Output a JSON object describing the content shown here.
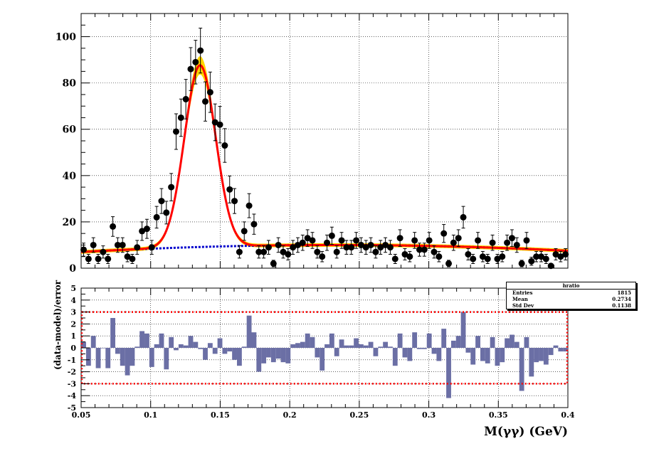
{
  "chart_data": [
    {
      "type": "scatter",
      "panel": "fit",
      "xlim": [
        0.05,
        0.4
      ],
      "ylim": [
        0,
        110
      ],
      "y_ticks": [
        "0",
        "20",
        "40",
        "60",
        "80",
        "100"
      ],
      "grid": true,
      "x": [
        0.0518,
        0.0553,
        0.0588,
        0.0623,
        0.0658,
        0.0693,
        0.0728,
        0.0763,
        0.0798,
        0.0833,
        0.0868,
        0.0903,
        0.0938,
        0.0973,
        0.1008,
        0.1043,
        0.1078,
        0.1113,
        0.1148,
        0.1183,
        0.1218,
        0.1253,
        0.1288,
        0.1323,
        0.1358,
        0.1393,
        0.1428,
        0.1463,
        0.1498,
        0.1533,
        0.1568,
        0.1603,
        0.1638,
        0.1673,
        0.1708,
        0.1743,
        0.1778,
        0.1813,
        0.1848,
        0.1883,
        0.1918,
        0.1953,
        0.1988,
        0.2023,
        0.2058,
        0.2093,
        0.2128,
        0.2163,
        0.2198,
        0.2233,
        0.2268,
        0.2303,
        0.2338,
        0.2373,
        0.2408,
        0.2443,
        0.2478,
        0.2513,
        0.2548,
        0.2583,
        0.2618,
        0.2653,
        0.2688,
        0.2723,
        0.2758,
        0.2793,
        0.2828,
        0.2863,
        0.2898,
        0.2933,
        0.2968,
        0.3003,
        0.3038,
        0.3073,
        0.3108,
        0.3143,
        0.3178,
        0.3213,
        0.3248,
        0.3283,
        0.3318,
        0.3353,
        0.3388,
        0.3423,
        0.3458,
        0.3493,
        0.3528,
        0.3563,
        0.3598,
        0.3633,
        0.3668,
        0.3703,
        0.3738,
        0.3773,
        0.3808,
        0.3843,
        0.3878,
        0.3913,
        0.3948,
        0.3983
      ],
      "y": [
        8,
        4,
        10,
        4,
        7,
        4,
        18,
        10,
        10,
        5,
        4,
        9,
        16,
        17,
        9,
        22,
        29,
        24,
        35,
        59,
        65,
        73,
        86,
        89,
        94,
        72,
        76,
        63,
        62,
        53,
        34,
        29,
        7,
        16,
        27,
        19,
        7,
        7,
        9,
        2,
        10,
        7,
        6,
        9,
        10,
        11,
        13,
        12,
        7,
        5,
        11,
        14,
        7,
        12,
        9,
        9,
        12,
        10,
        9,
        10,
        7,
        9,
        10,
        9,
        4,
        13,
        6,
        5,
        12,
        8,
        8,
        12,
        7,
        5,
        15,
        2,
        11,
        13,
        22,
        6,
        4,
        12,
        5,
        4,
        11,
        4,
        5,
        11,
        13,
        10,
        2,
        12,
        3,
        5,
        5,
        4,
        1,
        6,
        5,
        6
      ],
      "series": [
        {
          "values": "Gaussian + polynomial total model",
          "color": "#ff0000"
        },
        {
          "values": "background polynomial",
          "color": "#0000cc"
        }
      ],
      "model": {
        "peak_mean": 0.1355,
        "peak_sigma": 0.0112,
        "peak_amplitude": 78.5,
        "bkg_quadratic": [
          7.0,
          0.335,
          -0.0081
        ]
      },
      "band_color": "#ffd700",
      "marker_color": "#000000"
    },
    {
      "type": "bar",
      "panel": "residuals",
      "xlim": [
        0.05,
        0.4
      ],
      "ylim": [
        -5,
        5
      ],
      "x_ticks": [
        "0.05",
        "0.1",
        "0.15",
        "0.2",
        "0.25",
        "0.3",
        "0.35",
        "0.4"
      ],
      "y_ticks": [
        "-5",
        "-4",
        "-3",
        "-2",
        "-1",
        "0",
        "1",
        "2",
        "3",
        "4",
        "5"
      ],
      "ylabel": "(data-model)/error",
      "xlabel": "M(γγ) (GeV)",
      "x": [
        0.0518,
        0.0553,
        0.0588,
        0.0623,
        0.0658,
        0.0693,
        0.0728,
        0.0763,
        0.0798,
        0.0833,
        0.0868,
        0.0903,
        0.0938,
        0.0973,
        0.1008,
        0.1043,
        0.1078,
        0.1113,
        0.1148,
        0.1183,
        0.1218,
        0.1253,
        0.1288,
        0.1323,
        0.1358,
        0.1393,
        0.1428,
        0.1463,
        0.1498,
        0.1533,
        0.1568,
        0.1603,
        0.1638,
        0.1673,
        0.1708,
        0.1743,
        0.1778,
        0.1813,
        0.1848,
        0.1883,
        0.1918,
        0.1953,
        0.1988,
        0.2023,
        0.2058,
        0.2093,
        0.2128,
        0.2163,
        0.2198,
        0.2233,
        0.2268,
        0.2303,
        0.2338,
        0.2373,
        0.2408,
        0.2443,
        0.2478,
        0.2513,
        0.2548,
        0.2583,
        0.2618,
        0.2653,
        0.2688,
        0.2723,
        0.2758,
        0.2793,
        0.2828,
        0.2863,
        0.2898,
        0.2933,
        0.2968,
        0.3003,
        0.3038,
        0.3073,
        0.3108,
        0.3143,
        0.3178,
        0.3213,
        0.3248,
        0.3283,
        0.3318,
        0.3353,
        0.3388,
        0.3423,
        0.3458,
        0.3493,
        0.3528,
        0.3563,
        0.3598,
        0.3633,
        0.3668,
        0.3703,
        0.3738,
        0.3773,
        0.3808,
        0.3843,
        0.3878,
        0.3913,
        0.3948,
        0.3983
      ],
      "values": [
        0.5,
        -1.5,
        1.0,
        -1.7,
        0.0,
        -1.7,
        2.5,
        -0.5,
        -1.5,
        -2.3,
        -1.5,
        0.1,
        1.4,
        1.2,
        -1.6,
        0.3,
        1.2,
        -1.8,
        0.9,
        -0.2,
        0.3,
        0.2,
        1.0,
        0.5,
        -0.1,
        -1.0,
        0.4,
        -0.5,
        0.8,
        -0.5,
        -0.3,
        -1.0,
        -1.5,
        0.1,
        2.7,
        1.3,
        -2.0,
        -1.3,
        -0.8,
        -1.2,
        -0.9,
        -1.2,
        -1.3,
        0.3,
        0.4,
        0.5,
        1.2,
        0.9,
        -0.8,
        -1.9,
        0.3,
        1.2,
        -0.7,
        0.7,
        0.2,
        0.2,
        0.8,
        0.3,
        0.2,
        0.5,
        -0.7,
        0.1,
        0.5,
        0.1,
        -1.5,
        1.2,
        -0.8,
        -1.1,
        1.3,
        -0.1,
        -0.1,
        1.2,
        -0.5,
        -1.1,
        1.6,
        -4.2,
        0.6,
        1.0,
        3.0,
        -0.4,
        -1.4,
        1.0,
        -1.1,
        -1.3,
        0.9,
        -1.5,
        -1.2,
        0.8,
        1.1,
        0.5,
        -3.6,
        0.9,
        -2.4,
        -1.2,
        -1.1,
        -1.4,
        -0.6,
        0.2,
        -0.3,
        -0.3
      ],
      "bar_color": "#6b6fa5",
      "reference_lines": [
        3,
        -3
      ],
      "reference_color": "#ff0000",
      "stats_box": {
        "title": "hratio",
        "rows": [
          {
            "label": "Entries",
            "value": "1815"
          },
          {
            "label": "Mean",
            "value": "0.2734"
          },
          {
            "label": "Std Dev",
            "value": "0.1138"
          }
        ]
      }
    }
  ]
}
